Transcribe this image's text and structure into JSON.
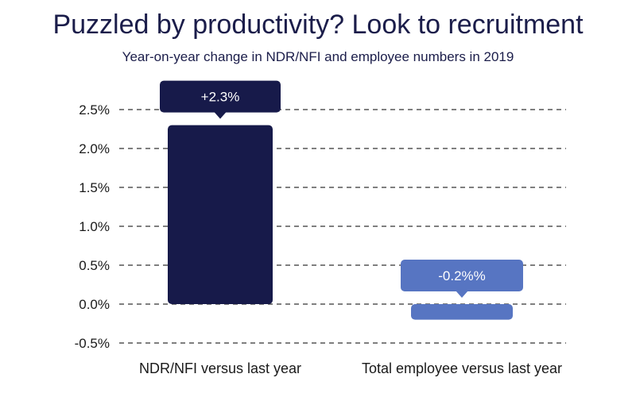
{
  "header": {
    "title": "Puzzled by productivity? Look to recruitment",
    "subtitle": "Year-on-year change in NDR/NFI and employee numbers in 2019"
  },
  "chart_data": {
    "type": "bar",
    "categories": [
      "NDR/NFI versus last year",
      "Total employee versus last year"
    ],
    "values": [
      2.3,
      -0.2
    ],
    "value_labels": [
      "+2.3%",
      "-0.2%%"
    ],
    "bar_colors": [
      "#171a4a",
      "#5775c2"
    ],
    "ylim": [
      -0.5,
      2.5
    ],
    "yticks": [
      2.5,
      2.0,
      1.5,
      1.0,
      0.5,
      0.0,
      -0.5
    ],
    "ytick_labels": [
      "2.5%",
      "2.0%",
      "1.5%",
      "1.0%",
      "0.5%",
      "0.0%",
      "-0.5%"
    ],
    "grid": true,
    "grid_style": "dashed",
    "title": "Puzzled by productivity? Look to recruitment",
    "xlabel": "",
    "ylabel": ""
  }
}
